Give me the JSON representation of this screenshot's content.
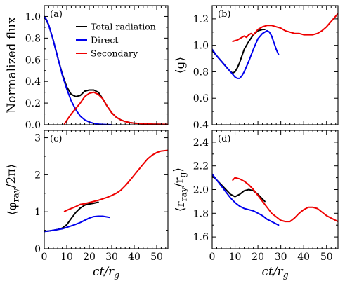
{
  "chart_data": [
    {
      "id": "a",
      "type": "line",
      "panel_label": "(a)",
      "ylabel": "Normalized flux",
      "xlabel": "",
      "xlim": [
        0,
        55
      ],
      "ylim": [
        0,
        1.1
      ],
      "xticks": [
        0,
        10,
        20,
        30,
        40,
        50
      ],
      "xtick_labels": [],
      "yticks": [
        0.0,
        0.2,
        0.4,
        0.6,
        0.8,
        1.0
      ],
      "ytick_labels": [
        "0.0",
        "0.2",
        "0.4",
        "0.6",
        "0.8",
        "1.0"
      ],
      "legend": "top-right",
      "series": [
        {
          "name": "Total radiation",
          "color": "#000000",
          "x": [
            0,
            2,
            4,
            6,
            8,
            10,
            12,
            14,
            16,
            18,
            20,
            22,
            24,
            26,
            28,
            30,
            32,
            34,
            36,
            38,
            40,
            42,
            44,
            46,
            48,
            50,
            52,
            55
          ],
          "y": [
            1.0,
            0.92,
            0.78,
            0.62,
            0.47,
            0.35,
            0.28,
            0.26,
            0.27,
            0.31,
            0.32,
            0.32,
            0.3,
            0.24,
            0.17,
            0.11,
            0.07,
            0.045,
            0.03,
            0.02,
            0.015,
            0.012,
            0.01,
            0.008,
            0.006,
            0.005,
            0.004,
            0.003
          ]
        },
        {
          "name": "Direct",
          "color": "#0000ee",
          "x": [
            0,
            1,
            2,
            4,
            6,
            8,
            10,
            12,
            14,
            16,
            18,
            20,
            22,
            24,
            26,
            28,
            30
          ],
          "y": [
            1.0,
            0.97,
            0.92,
            0.78,
            0.62,
            0.46,
            0.33,
            0.22,
            0.14,
            0.08,
            0.045,
            0.025,
            0.013,
            0.006,
            0.003,
            0.001,
            0.0
          ]
        },
        {
          "name": "Secondary",
          "color": "#ee0000",
          "x": [
            9,
            10,
            12,
            14,
            16,
            18,
            20,
            22,
            24,
            26,
            28,
            30,
            32,
            34,
            36,
            38,
            40,
            42,
            44,
            46,
            48,
            50,
            52,
            55
          ],
          "y": [
            0.01,
            0.04,
            0.1,
            0.15,
            0.2,
            0.26,
            0.29,
            0.3,
            0.28,
            0.24,
            0.17,
            0.11,
            0.07,
            0.045,
            0.03,
            0.02,
            0.015,
            0.012,
            0.01,
            0.008,
            0.006,
            0.005,
            0.004,
            0.003
          ]
        }
      ]
    },
    {
      "id": "b",
      "type": "line",
      "panel_label": "(b)",
      "ylabel": "⟨g⟩",
      "xlabel": "",
      "xlim": [
        0,
        55
      ],
      "ylim": [
        0.4,
        1.3
      ],
      "xticks": [
        0,
        10,
        20,
        30,
        40,
        50
      ],
      "xtick_labels": [],
      "yticks": [
        0.4,
        0.6,
        0.8,
        1.0,
        1.2
      ],
      "ytick_labels": [
        "0.4",
        "0.6",
        "0.8",
        "1.0",
        "1.2"
      ],
      "series": [
        {
          "name": "Total radiation",
          "color": "#000000",
          "x": [
            0,
            2,
            4,
            6,
            8,
            9,
            10,
            11,
            12,
            13,
            14,
            15,
            16,
            18,
            20,
            22,
            23
          ],
          "y": [
            0.96,
            0.92,
            0.88,
            0.84,
            0.8,
            0.79,
            0.8,
            0.83,
            0.87,
            0.92,
            0.97,
            1.0,
            1.03,
            1.08,
            1.11,
            1.12,
            1.12
          ]
        },
        {
          "name": "Direct",
          "color": "#0000ee",
          "x": [
            0,
            2,
            4,
            6,
            8,
            10,
            11,
            12,
            13,
            14,
            16,
            18,
            20,
            22,
            24,
            25,
            26,
            27,
            28,
            29
          ],
          "y": [
            0.97,
            0.92,
            0.88,
            0.84,
            0.8,
            0.76,
            0.75,
            0.75,
            0.77,
            0.8,
            0.88,
            0.97,
            1.05,
            1.09,
            1.11,
            1.1,
            1.07,
            1.02,
            0.97,
            0.93
          ]
        },
        {
          "name": "Secondary",
          "color": "#ee0000",
          "x": [
            9,
            11,
            13,
            14,
            15,
            16,
            17,
            18,
            20,
            22,
            24,
            26,
            28,
            30,
            32,
            34,
            36,
            38,
            40,
            42,
            44,
            46,
            48,
            50,
            52,
            55
          ],
          "y": [
            1.03,
            1.04,
            1.06,
            1.07,
            1.06,
            1.08,
            1.09,
            1.08,
            1.12,
            1.14,
            1.15,
            1.15,
            1.14,
            1.13,
            1.11,
            1.1,
            1.09,
            1.09,
            1.08,
            1.08,
            1.08,
            1.09,
            1.11,
            1.14,
            1.18,
            1.24
          ]
        }
      ]
    },
    {
      "id": "c",
      "type": "line",
      "panel_label": "(c)",
      "ylabel": "⟨φ_ray/2π⟩",
      "xlabel": "ct/r_g",
      "xlim": [
        0,
        55
      ],
      "ylim": [
        0,
        3.2
      ],
      "xticks": [
        0,
        10,
        20,
        30,
        40,
        50
      ],
      "xtick_labels": [
        "0",
        "10",
        "20",
        "30",
        "40",
        "50"
      ],
      "yticks": [
        0,
        1,
        2,
        3
      ],
      "ytick_labels": [
        "0",
        "1",
        "2",
        "3"
      ],
      "series": [
        {
          "name": "Total radiation",
          "color": "#000000",
          "x": [
            0,
            2,
            4,
            6,
            8,
            10,
            12,
            14,
            16,
            18,
            20,
            22,
            24
          ],
          "y": [
            0.47,
            0.48,
            0.5,
            0.52,
            0.56,
            0.65,
            0.82,
            0.98,
            1.1,
            1.18,
            1.21,
            1.23,
            1.26
          ]
        },
        {
          "name": "Direct",
          "color": "#0000ee",
          "x": [
            0,
            2,
            4,
            6,
            8,
            10,
            12,
            14,
            16,
            18,
            20,
            22,
            24,
            26,
            28,
            29
          ],
          "y": [
            0.47,
            0.48,
            0.5,
            0.52,
            0.54,
            0.58,
            0.62,
            0.66,
            0.71,
            0.77,
            0.83,
            0.87,
            0.88,
            0.88,
            0.86,
            0.85
          ]
        },
        {
          "name": "Secondary",
          "color": "#ee0000",
          "x": [
            9,
            10,
            12,
            14,
            16,
            18,
            20,
            22,
            24,
            26,
            28,
            30,
            32,
            34,
            36,
            38,
            40,
            42,
            44,
            46,
            48,
            50,
            52,
            55
          ],
          "y": [
            1.01,
            1.04,
            1.09,
            1.14,
            1.2,
            1.22,
            1.25,
            1.28,
            1.31,
            1.35,
            1.39,
            1.44,
            1.5,
            1.58,
            1.7,
            1.84,
            1.99,
            2.14,
            2.29,
            2.43,
            2.53,
            2.6,
            2.64,
            2.66
          ]
        }
      ]
    },
    {
      "id": "d",
      "type": "line",
      "panel_label": "(d)",
      "ylabel": "⟨r_ray/r_g⟩",
      "xlabel": "ct/r_g",
      "xlim": [
        0,
        55
      ],
      "ylim": [
        1.5,
        2.5
      ],
      "xticks": [
        0,
        10,
        20,
        30,
        40,
        50
      ],
      "xtick_labels": [
        "0",
        "10",
        "20",
        "30",
        "40",
        "50"
      ],
      "yticks": [
        1.6,
        1.8,
        2.0,
        2.2,
        2.4
      ],
      "ytick_labels": [
        "1.6",
        "1.8",
        "2.0",
        "2.2",
        "2.4"
      ],
      "series": [
        {
          "name": "Total radiation",
          "color": "#000000",
          "x": [
            0,
            2,
            4,
            6,
            8,
            10,
            12,
            14,
            16,
            18,
            20,
            22,
            23
          ],
          "y": [
            2.12,
            2.08,
            2.04,
            2.0,
            1.96,
            1.94,
            1.96,
            1.99,
            2.0,
            1.99,
            1.96,
            1.92,
            1.9
          ]
        },
        {
          "name": "Direct",
          "color": "#0000ee",
          "x": [
            0,
            2,
            4,
            6,
            8,
            10,
            12,
            14,
            16,
            18,
            20,
            22,
            24,
            26,
            28,
            29
          ],
          "y": [
            2.13,
            2.08,
            2.03,
            1.98,
            1.93,
            1.89,
            1.86,
            1.84,
            1.83,
            1.82,
            1.8,
            1.78,
            1.75,
            1.73,
            1.71,
            1.7
          ]
        },
        {
          "name": "Secondary",
          "color": "#ee0000",
          "x": [
            9,
            10,
            12,
            14,
            16,
            18,
            20,
            22,
            24,
            26,
            28,
            30,
            32,
            34,
            36,
            38,
            40,
            42,
            44,
            46,
            48,
            50,
            52,
            55
          ],
          "y": [
            2.08,
            2.1,
            2.09,
            2.07,
            2.04,
            2.0,
            1.95,
            1.9,
            1.85,
            1.8,
            1.77,
            1.74,
            1.73,
            1.73,
            1.76,
            1.8,
            1.83,
            1.85,
            1.85,
            1.84,
            1.81,
            1.78,
            1.76,
            1.73
          ]
        }
      ]
    }
  ]
}
